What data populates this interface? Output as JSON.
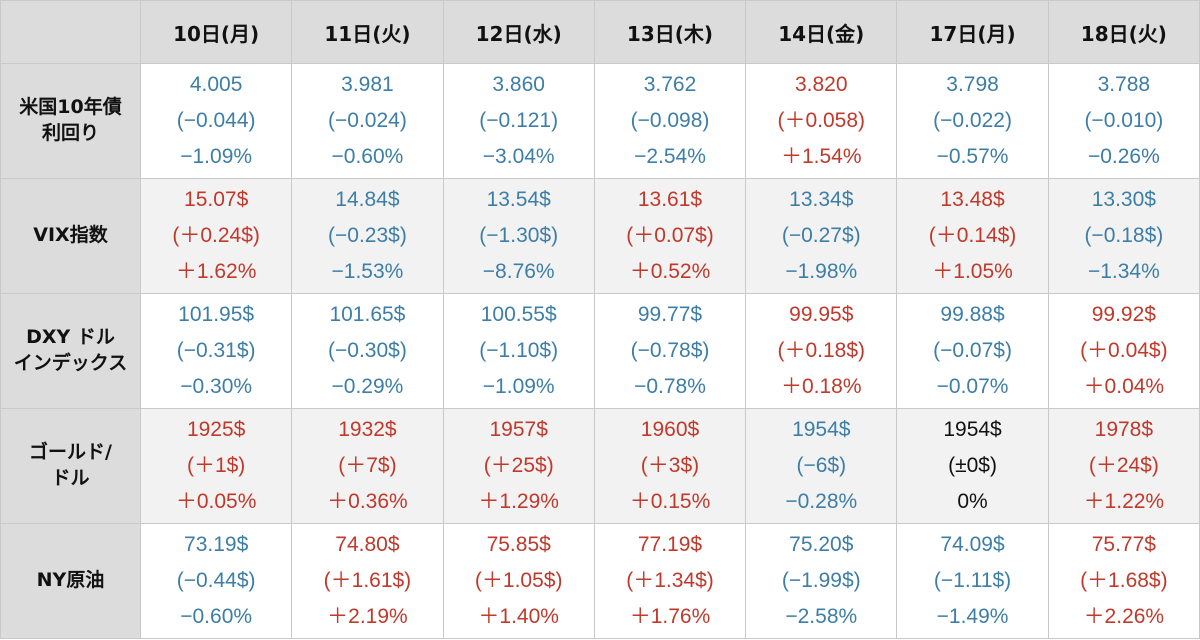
{
  "colors": {
    "down": "#3d7ea6",
    "up": "#c0392b",
    "flat": "#111111",
    "header_bg": "#dcdcdc"
  },
  "headers": [
    "10日(月)",
    "11日(火)",
    "12日(水)",
    "13日(木)",
    "14日(金)",
    "17日(月)",
    "18日(火)"
  ],
  "rows": [
    {
      "label": [
        "米国10年債",
        "利回り"
      ],
      "cells": [
        {
          "trend": "down",
          "lines": [
            "4.005",
            "(−0.044)",
            "−1.09%"
          ]
        },
        {
          "trend": "down",
          "lines": [
            "3.981",
            "(−0.024)",
            "−0.60%"
          ]
        },
        {
          "trend": "down",
          "lines": [
            "3.860",
            "(−0.121)",
            "−3.04%"
          ]
        },
        {
          "trend": "down",
          "lines": [
            "3.762",
            "(−0.098)",
            "−2.54%"
          ]
        },
        {
          "trend": "up",
          "lines": [
            "3.820",
            "(＋0.058)",
            "＋1.54%"
          ]
        },
        {
          "trend": "down",
          "lines": [
            "3.798",
            "(−0.022)",
            "−0.57%"
          ]
        },
        {
          "trend": "down",
          "lines": [
            "3.788",
            "(−0.010)",
            "−0.26%"
          ]
        }
      ]
    },
    {
      "label": [
        "VIX指数"
      ],
      "cells": [
        {
          "trend": "up",
          "lines": [
            "15.07$",
            "(＋0.24$)",
            "＋1.62%"
          ]
        },
        {
          "trend": "down",
          "lines": [
            "14.84$",
            "(−0.23$)",
            "−1.53%"
          ]
        },
        {
          "trend": "down",
          "lines": [
            "13.54$",
            "(−1.30$)",
            "−8.76%"
          ]
        },
        {
          "trend": "up",
          "lines": [
            "13.61$",
            "(＋0.07$)",
            "＋0.52%"
          ]
        },
        {
          "trend": "down",
          "lines": [
            "13.34$",
            "(−0.27$)",
            "−1.98%"
          ]
        },
        {
          "trend": "up",
          "lines": [
            "13.48$",
            "(＋0.14$)",
            "＋1.05%"
          ]
        },
        {
          "trend": "down",
          "lines": [
            "13.30$",
            "(−0.18$)",
            "−1.34%"
          ]
        }
      ]
    },
    {
      "label": [
        "DXY ドル",
        "インデックス"
      ],
      "cells": [
        {
          "trend": "down",
          "lines": [
            "101.95$",
            "(−0.31$)",
            "−0.30%"
          ]
        },
        {
          "trend": "down",
          "lines": [
            "101.65$",
            "(−0.30$)",
            "−0.29%"
          ]
        },
        {
          "trend": "down",
          "lines": [
            "100.55$",
            "(−1.10$)",
            "−1.09%"
          ]
        },
        {
          "trend": "down",
          "lines": [
            "99.77$",
            "(−0.78$)",
            "−0.78%"
          ]
        },
        {
          "trend": "up",
          "lines": [
            "99.95$",
            "(＋0.18$)",
            "＋0.18%"
          ]
        },
        {
          "trend": "down",
          "lines": [
            "99.88$",
            "(−0.07$)",
            "−0.07%"
          ]
        },
        {
          "trend": "up",
          "lines": [
            "99.92$",
            "(＋0.04$)",
            "＋0.04%"
          ]
        }
      ]
    },
    {
      "label": [
        "ゴールド/",
        "ドル"
      ],
      "cells": [
        {
          "trend": "up",
          "lines": [
            "1925$",
            "(＋1$)",
            "＋0.05%"
          ]
        },
        {
          "trend": "up",
          "lines": [
            "1932$",
            "(＋7$)",
            "＋0.36%"
          ]
        },
        {
          "trend": "up",
          "lines": [
            "1957$",
            "(＋25$)",
            "＋1.29%"
          ]
        },
        {
          "trend": "up",
          "lines": [
            "1960$",
            "(＋3$)",
            "＋0.15%"
          ]
        },
        {
          "trend": "down",
          "lines": [
            "1954$",
            "(−6$)",
            "−0.28%"
          ]
        },
        {
          "trend": "flat",
          "lines": [
            "1954$",
            "(±0$)",
            "0%"
          ]
        },
        {
          "trend": "up",
          "lines": [
            "1978$",
            "(＋24$)",
            "＋1.22%"
          ]
        }
      ]
    },
    {
      "label": [
        "NY原油"
      ],
      "cells": [
        {
          "trend": "down",
          "lines": [
            "73.19$",
            "(−0.44$)",
            "−0.60%"
          ]
        },
        {
          "trend": "up",
          "lines": [
            "74.80$",
            "(＋1.61$)",
            "＋2.19%"
          ]
        },
        {
          "trend": "up",
          "lines": [
            "75.85$",
            "(＋1.05$)",
            "＋1.40%"
          ]
        },
        {
          "trend": "up",
          "lines": [
            "77.19$",
            "(＋1.34$)",
            "＋1.76%"
          ]
        },
        {
          "trend": "down",
          "lines": [
            "75.20$",
            "(−1.99$)",
            "−2.58%"
          ]
        },
        {
          "trend": "down",
          "lines": [
            "74.09$",
            "(−1.11$)",
            "−1.49%"
          ]
        },
        {
          "trend": "up",
          "lines": [
            "75.77$",
            "(＋1.68$)",
            "＋2.26%"
          ]
        }
      ]
    }
  ]
}
